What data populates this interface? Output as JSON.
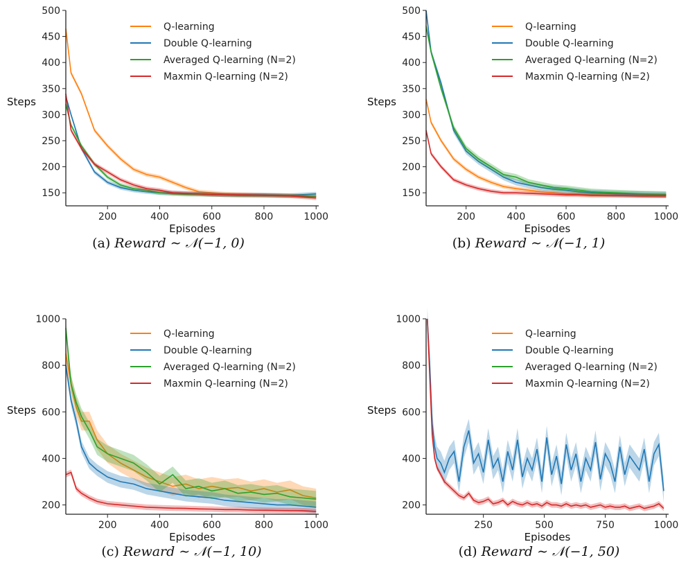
{
  "colors": {
    "Q-learning": "#ff7f0e",
    "Double Q-learning": "#1f77b4",
    "Averaged Q-learning (N=2)": "#2ca02c",
    "Maxmin Q-learning (N=2)": "#d62728"
  },
  "chart_data": [
    {
      "type": "line",
      "caption": {
        "prefix": "(a)",
        "math": "Reward ∼ 𝒩(−1, 0)"
      },
      "xlabel": "Episodes",
      "ylabel": "Steps",
      "xlim": [
        40,
        1010
      ],
      "ylim": [
        125,
        500
      ],
      "xticks": [
        200,
        400,
        600,
        800,
        1000
      ],
      "yticks": [
        150,
        200,
        250,
        300,
        350,
        400,
        450,
        500
      ],
      "legend": "top-center",
      "grid": false,
      "series": [
        {
          "name": "Q-learning",
          "x": [
            40,
            60,
            100,
            150,
            200,
            250,
            300,
            350,
            400,
            450,
            500,
            550,
            600,
            650,
            700,
            800,
            900,
            1000
          ],
          "y": [
            465,
            380,
            340,
            270,
            240,
            215,
            195,
            185,
            180,
            170,
            160,
            152,
            150,
            148,
            147,
            146,
            145,
            143
          ],
          "band": 4
        },
        {
          "name": "Double Q-learning",
          "x": [
            40,
            60,
            100,
            150,
            200,
            250,
            300,
            350,
            400,
            450,
            500,
            550,
            600,
            650,
            700,
            800,
            900,
            1000
          ],
          "y": [
            335,
            300,
            235,
            190,
            170,
            160,
            155,
            152,
            150,
            150,
            149,
            148,
            147,
            146,
            146,
            146,
            145,
            148
          ],
          "band": 4
        },
        {
          "name": "Averaged Q-learning (N=2)",
          "x": [
            40,
            60,
            100,
            150,
            200,
            250,
            300,
            350,
            400,
            450,
            500,
            550,
            600,
            650,
            700,
            800,
            900,
            1000
          ],
          "y": [
            320,
            280,
            240,
            205,
            180,
            165,
            158,
            155,
            150,
            148,
            147,
            147,
            146,
            146,
            145,
            145,
            144,
            143
          ],
          "band": 4
        },
        {
          "name": "Maxmin Q-learning (N=2)",
          "x": [
            40,
            60,
            100,
            150,
            200,
            250,
            300,
            350,
            400,
            450,
            500,
            550,
            600,
            650,
            700,
            800,
            900,
            1000
          ],
          "y": [
            340,
            270,
            235,
            205,
            190,
            175,
            165,
            158,
            155,
            150,
            149,
            148,
            147,
            146,
            146,
            145,
            144,
            140
          ],
          "band": 4
        }
      ]
    },
    {
      "type": "line",
      "caption": {
        "prefix": "(b)",
        "math": "Reward ∼ 𝒩(−1, 1)"
      },
      "xlabel": "Episodes",
      "ylabel": "Steps",
      "xlim": [
        40,
        1010
      ],
      "ylim": [
        125,
        500
      ],
      "xticks": [
        200,
        400,
        600,
        800,
        1000
      ],
      "yticks": [
        150,
        200,
        250,
        300,
        350,
        400,
        450,
        500
      ],
      "legend": "top-center",
      "grid": false,
      "series": [
        {
          "name": "Q-learning",
          "x": [
            40,
            60,
            100,
            150,
            200,
            250,
            300,
            350,
            400,
            450,
            500,
            550,
            600,
            650,
            700,
            800,
            900,
            1000
          ],
          "y": [
            330,
            285,
            250,
            215,
            195,
            180,
            170,
            162,
            158,
            155,
            152,
            150,
            148,
            147,
            146,
            145,
            145,
            145
          ],
          "band": 4
        },
        {
          "name": "Double Q-learning",
          "x": [
            40,
            60,
            100,
            150,
            200,
            250,
            300,
            350,
            400,
            450,
            500,
            550,
            600,
            650,
            700,
            800,
            900,
            1000
          ],
          "y": [
            500,
            420,
            360,
            270,
            230,
            210,
            195,
            180,
            170,
            165,
            160,
            157,
            155,
            152,
            150,
            148,
            147,
            146
          ],
          "band": 6
        },
        {
          "name": "Averaged Q-learning (N=2)",
          "x": [
            40,
            60,
            100,
            150,
            200,
            250,
            300,
            350,
            400,
            450,
            500,
            550,
            600,
            650,
            700,
            800,
            900,
            1000
          ],
          "y": [
            470,
            420,
            350,
            275,
            235,
            215,
            200,
            185,
            180,
            170,
            165,
            160,
            158,
            155,
            152,
            150,
            148,
            147
          ],
          "band": 6
        },
        {
          "name": "Maxmin Q-learning (N=2)",
          "x": [
            40,
            60,
            100,
            150,
            200,
            250,
            300,
            350,
            400,
            450,
            500,
            550,
            600,
            650,
            700,
            800,
            900,
            1000
          ],
          "y": [
            270,
            225,
            200,
            175,
            165,
            158,
            153,
            150,
            150,
            149,
            148,
            147,
            146,
            146,
            145,
            145,
            144,
            144
          ],
          "band": 4
        }
      ]
    },
    {
      "type": "line",
      "caption": {
        "prefix": "(c)",
        "math": "Reward ∼ 𝒩(−1, 10)"
      },
      "xlabel": "Episodes",
      "ylabel": "Steps",
      "xlim": [
        40,
        1010
      ],
      "ylim": [
        160,
        1000
      ],
      "xticks": [
        200,
        400,
        600,
        800,
        1000
      ],
      "yticks": [
        200,
        400,
        600,
        800,
        1000
      ],
      "legend": "top-center",
      "grid": false,
      "series": [
        {
          "name": "Q-learning",
          "x": [
            40,
            60,
            80,
            100,
            130,
            160,
            200,
            250,
            300,
            350,
            400,
            450,
            500,
            550,
            600,
            650,
            700,
            750,
            800,
            850,
            900,
            950,
            1000
          ],
          "y": [
            850,
            720,
            620,
            560,
            560,
            480,
            420,
            380,
            350,
            320,
            300,
            280,
            290,
            270,
            280,
            270,
            275,
            260,
            270,
            255,
            265,
            240,
            230
          ],
          "band": 40
        },
        {
          "name": "Double Q-learning",
          "x": [
            40,
            60,
            80,
            100,
            130,
            160,
            200,
            250,
            300,
            350,
            400,
            450,
            500,
            550,
            600,
            650,
            700,
            750,
            800,
            850,
            900,
            950,
            1000
          ],
          "y": [
            800,
            650,
            560,
            450,
            380,
            350,
            320,
            300,
            290,
            270,
            260,
            250,
            240,
            235,
            230,
            220,
            215,
            210,
            205,
            200,
            200,
            195,
            190
          ],
          "band": 25
        },
        {
          "name": "Averaged Q-learning (N=2)",
          "x": [
            40,
            60,
            80,
            100,
            130,
            160,
            200,
            250,
            300,
            350,
            400,
            450,
            500,
            550,
            600,
            650,
            700,
            750,
            800,
            850,
            900,
            950,
            1000
          ],
          "y": [
            960,
            720,
            640,
            580,
            520,
            450,
            420,
            400,
            380,
            340,
            290,
            330,
            270,
            280,
            260,
            270,
            250,
            255,
            245,
            250,
            235,
            230,
            225
          ],
          "band": 35
        },
        {
          "name": "Maxmin Q-learning (N=2)",
          "x": [
            40,
            60,
            80,
            100,
            130,
            160,
            200,
            250,
            300,
            350,
            400,
            450,
            500,
            550,
            600,
            650,
            700,
            750,
            800,
            850,
            900,
            950,
            1000
          ],
          "y": [
            330,
            340,
            270,
            250,
            230,
            215,
            205,
            200,
            195,
            190,
            188,
            186,
            185,
            183,
            182,
            180,
            180,
            178,
            177,
            176,
            175,
            175,
            172
          ],
          "band": 12
        }
      ]
    },
    {
      "type": "line",
      "caption": {
        "prefix": "(d)",
        "math": "Reward ∼ 𝒩(−1, 50)"
      },
      "xlabel": "Episodes",
      "ylabel": "Steps",
      "xlim": [
        15,
        1010
      ],
      "ylim": [
        160,
        1000
      ],
      "xticks": [
        250,
        500,
        750,
        1000
      ],
      "yticks": [
        200,
        400,
        600,
        800,
        1000
      ],
      "legend": "top-center",
      "grid": false,
      "series": [
        {
          "name": "Q-learning",
          "x": [],
          "y": [],
          "band": 0
        },
        {
          "name": "Double Q-learning",
          "x": [
            20,
            30,
            40,
            50,
            60,
            75,
            90,
            110,
            130,
            150,
            170,
            190,
            210,
            230,
            250,
            270,
            290,
            310,
            330,
            350,
            370,
            390,
            410,
            430,
            450,
            470,
            490,
            510,
            530,
            550,
            570,
            590,
            610,
            630,
            650,
            670,
            690,
            710,
            730,
            750,
            770,
            790,
            810,
            830,
            850,
            870,
            890,
            910,
            930,
            950,
            970,
            990
          ],
          "y": [
            1000,
            800,
            550,
            450,
            400,
            380,
            340,
            400,
            430,
            300,
            450,
            520,
            380,
            420,
            340,
            480,
            360,
            400,
            300,
            430,
            350,
            480,
            320,
            400,
            350,
            440,
            300,
            490,
            330,
            410,
            290,
            460,
            350,
            420,
            300,
            400,
            350,
            470,
            310,
            420,
            380,
            300,
            450,
            330,
            410,
            380,
            350,
            440,
            300,
            420,
            460,
            260
          ],
          "band": 50
        },
        {
          "name": "Averaged Q-learning (N=2)",
          "x": [],
          "y": [],
          "band": 0
        },
        {
          "name": "Maxmin Q-learning (N=2)",
          "x": [
            20,
            30,
            40,
            50,
            60,
            75,
            90,
            110,
            130,
            150,
            170,
            190,
            210,
            230,
            250,
            270,
            290,
            310,
            330,
            350,
            370,
            390,
            410,
            430,
            450,
            470,
            490,
            510,
            530,
            550,
            570,
            590,
            610,
            630,
            650,
            670,
            690,
            710,
            730,
            750,
            770,
            790,
            810,
            830,
            850,
            870,
            890,
            910,
            930,
            950,
            970,
            990
          ],
          "y": [
            1000,
            750,
            500,
            400,
            360,
            330,
            300,
            280,
            260,
            240,
            230,
            250,
            220,
            210,
            215,
            225,
            205,
            210,
            220,
            200,
            215,
            205,
            200,
            210,
            200,
            205,
            195,
            210,
            200,
            200,
            195,
            205,
            195,
            200,
            195,
            200,
            190,
            195,
            200,
            190,
            195,
            190,
            190,
            195,
            185,
            190,
            195,
            185,
            190,
            195,
            205,
            185
          ],
          "band": 12
        }
      ]
    }
  ]
}
